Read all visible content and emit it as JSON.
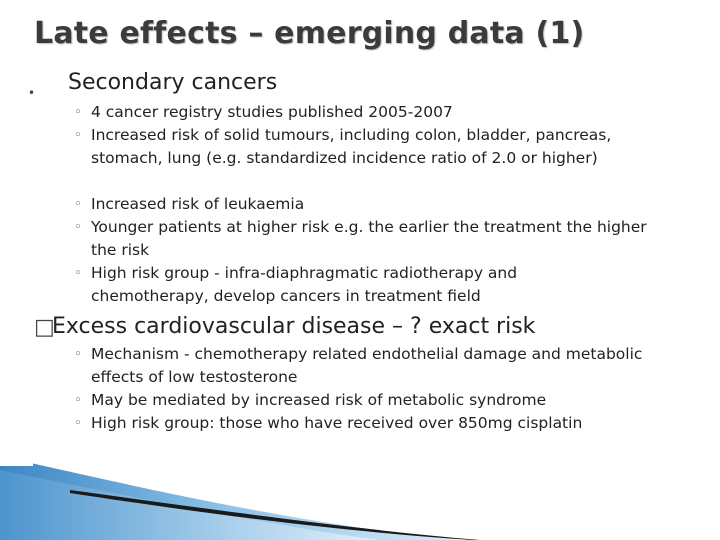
{
  "slide": {
    "title": "Late effects – emerging data (1)",
    "sections": [
      {
        "marker": "•",
        "heading": "Secondary cancers",
        "items": [
          "4 cancer registry studies published 2005-2007",
          "Increased risk of solid tumours, including  colon, bladder, pancreas, stomach, lung (e.g. standardized incidence ratio of  2.0 or higher)",
          "Increased risk of leukaemia",
          "Younger patients at higher risk e.g. the earlier the treatment the higher the risk",
          "High risk group - infra-diaphragmatic radiotherapy and chemotherapy, develop cancers in treatment field"
        ]
      },
      {
        "marker": "□",
        "heading": "Excess cardiovascular disease – ? exact risk",
        "items": [
          "Mechanism - chemotherapy related endothelial damage and metabolic effects of low testosterone",
          "May be mediated by increased risk of metabolic syndrome",
          "High risk group: those who have received over 850mg cisplatin"
        ]
      }
    ],
    "sub_marker": "◦",
    "colors": {
      "title": "#3b3b3b",
      "decor_blue": "#4a90c8",
      "decor_dark": "#1a1a1a"
    }
  }
}
